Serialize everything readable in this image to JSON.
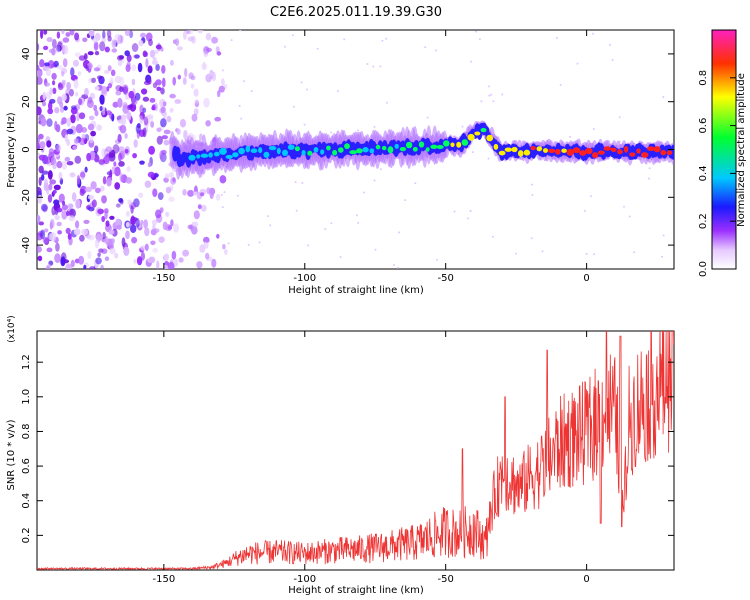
{
  "title": "C2E6.2025.011.19.39.G30",
  "chart_data": [
    {
      "type": "heatmap",
      "xlabel": "Height of straight line (km)",
      "ylabel": "Frequency (Hz)",
      "xlim": [
        -195,
        31
      ],
      "ylim": [
        -50,
        50
      ],
      "x_ticks": [
        -150,
        -100,
        -50,
        0
      ],
      "y_ticks": [
        -40,
        -20,
        0,
        20,
        40
      ],
      "grid": false,
      "colorbar": {
        "label": "Normalized spectral amplitude",
        "range": [
          0,
          1
        ],
        "ticks": [
          "0.0",
          "0.2",
          "0.4",
          "0.6",
          "0.8"
        ]
      },
      "ridge_center_hz": [
        {
          "x": -145,
          "y": -4
        },
        {
          "x": -120,
          "y": -1
        },
        {
          "x": -90,
          "y": 0
        },
        {
          "x": -60,
          "y": 1
        },
        {
          "x": -45,
          "y": 2
        },
        {
          "x": -37,
          "y": 9
        },
        {
          "x": -30,
          "y": -1
        },
        {
          "x": -15,
          "y": 0
        },
        {
          "x": 0,
          "y": -1
        },
        {
          "x": 30,
          "y": -1
        }
      ],
      "noise_region_x": [
        -195,
        -128
      ]
    },
    {
      "type": "line",
      "xlabel": "Height of straight line (km)",
      "ylabel": "SNR (10 * v/v)",
      "y_scale_note": "(x10⁴)",
      "xlim": [
        -195,
        31
      ],
      "ylim": [
        0,
        1.38
      ],
      "x_ticks": [
        -150,
        -100,
        -50,
        0
      ],
      "y_ticks": [
        "0.2",
        "0.4",
        "0.6",
        "0.8",
        "1.0",
        "1.2"
      ],
      "grid": false,
      "series": [
        {
          "color": "#ee3333",
          "x": [
            -195,
            -170,
            -150,
            -140,
            -133,
            -128,
            -124,
            -120,
            -110,
            -100,
            -90,
            -80,
            -70,
            -60,
            -50,
            -45,
            -40,
            -36,
            -33,
            -30,
            -27,
            -24,
            -20,
            -16,
            -13,
            -10,
            -5,
            0,
            5,
            8,
            10,
            12,
            13,
            15,
            18,
            22,
            26,
            31
          ],
          "y": [
            0.01,
            0.01,
            0.01,
            0.01,
            0.02,
            0.05,
            0.09,
            0.12,
            0.13,
            0.12,
            0.14,
            0.15,
            0.17,
            0.2,
            0.28,
            0.26,
            0.3,
            0.2,
            0.45,
            0.62,
            0.58,
            0.52,
            0.6,
            0.65,
            0.72,
            0.8,
            0.85,
            0.88,
            0.98,
            1.05,
            1.0,
            0.7,
            0.35,
            0.95,
            1.05,
            1.12,
            1.2,
            1.25
          ],
          "spikes": [
            {
              "x": -44,
              "y": 0.7
            },
            {
              "x": -29,
              "y": 1.0
            },
            {
              "x": -14,
              "y": 1.27
            },
            {
              "x": 7,
              "y": 1.38
            },
            {
              "x": 12,
              "y": 1.35
            },
            {
              "x": 12.5,
              "y": 0.25
            },
            {
              "x": 5,
              "y": 0.27
            }
          ]
        }
      ]
    }
  ]
}
